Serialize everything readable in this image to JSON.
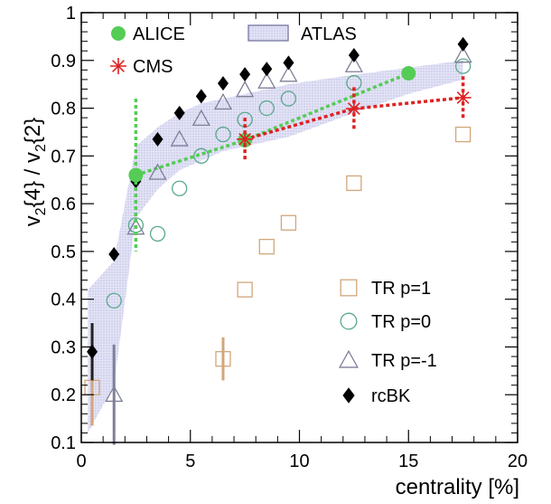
{
  "chart_data": {
    "type": "scatter",
    "xlabel": "centrality [%]",
    "ylabel_main": "v",
    "ylabel_parts": [
      "2",
      "{4} / v",
      "2",
      "{2}"
    ],
    "xlim": [
      0,
      20
    ],
    "ylim": [
      0.1,
      1.0
    ],
    "x_ticks": [
      0,
      5,
      10,
      15,
      20
    ],
    "x_tick_labels": [
      "0",
      "5",
      "10",
      "15",
      "20"
    ],
    "y_ticks": [
      0.1,
      0.2,
      0.3,
      0.4,
      0.5,
      0.6,
      0.7,
      0.8,
      0.9,
      1.0
    ],
    "y_tick_labels": [
      "0.1",
      "0.2",
      "0.3",
      "0.4",
      "0.5",
      "0.6",
      "0.7",
      "0.8",
      "0.9",
      "1"
    ],
    "grid": false,
    "colors": {
      "alice": "#55cc55",
      "cms": "#dd2222",
      "atlas_band": "#c8c8ee",
      "atlas_edge": "#6a6a9a",
      "tr_p1": "#d2a67a",
      "tr_p0": "#5aa88c",
      "tr_pm1": "#7f7f99",
      "rcbk": "#000000"
    },
    "atlas_band": {
      "x": [
        0.3,
        1.5,
        2.5,
        3.5,
        4.5,
        5.5,
        6.5,
        7.5,
        8.5,
        9.5,
        12.5,
        15,
        17.5
      ],
      "upper": [
        0.42,
        0.48,
        0.72,
        0.76,
        0.79,
        0.81,
        0.82,
        0.83,
        0.84,
        0.85,
        0.87,
        0.885,
        0.9
      ],
      "lower": [
        0.12,
        0.22,
        0.57,
        0.63,
        0.67,
        0.69,
        0.71,
        0.72,
        0.73,
        0.74,
        0.79,
        0.83,
        0.86
      ]
    },
    "series": [
      {
        "name": "ALICE",
        "x": [
          2.5,
          7.5,
          15
        ],
        "y": [
          0.66,
          0.733,
          0.873
        ],
        "yerr": [
          0.16,
          0.0,
          0.0
        ]
      },
      {
        "name": "CMS",
        "x": [
          7.5,
          12.5,
          17.5
        ],
        "y": [
          0.735,
          0.799,
          0.822
        ],
        "yerr": [
          0.045,
          0.045,
          0.045
        ]
      },
      {
        "name": "TR p=1",
        "x": [
          0.5,
          6.5,
          7.5,
          8.5,
          9.5,
          12.5,
          17.5
        ],
        "y": [
          0.215,
          0.275,
          0.42,
          0.51,
          0.56,
          0.643,
          0.745
        ],
        "yerr": [
          0.08,
          0.045,
          0.0,
          0.0,
          0.0,
          0.0,
          0.0
        ]
      },
      {
        "name": "TR p=0",
        "x": [
          1.5,
          2.5,
          3.5,
          4.5,
          5.5,
          6.5,
          7.5,
          8.5,
          9.5,
          12.5,
          17.5
        ],
        "y": [
          0.397,
          0.555,
          0.537,
          0.632,
          0.7,
          0.745,
          0.776,
          0.8,
          0.82,
          0.853,
          0.888
        ],
        "yerr": [
          0,
          0,
          0,
          0,
          0,
          0,
          0,
          0,
          0,
          0,
          0
        ]
      },
      {
        "name": "TR p=-1",
        "x": [
          1.5,
          2.5,
          3.5,
          4.5,
          5.5,
          6.5,
          7.5,
          8.5,
          9.5,
          12.5,
          17.5
        ],
        "y": [
          0.2,
          0.55,
          0.665,
          0.735,
          0.778,
          0.812,
          0.838,
          0.856,
          0.87,
          0.89,
          0.91
        ],
        "yerr": [
          0.105,
          0,
          0,
          0,
          0,
          0,
          0,
          0,
          0,
          0,
          0
        ]
      },
      {
        "name": "rcBK",
        "x": [
          0.5,
          1.5,
          2.5,
          3.5,
          4.5,
          5.5,
          6.5,
          7.5,
          8.5,
          9.5,
          12.5,
          17.5
        ],
        "y": [
          0.29,
          0.494,
          0.647,
          0.735,
          0.79,
          0.825,
          0.852,
          0.871,
          0.882,
          0.895,
          0.911,
          0.934
        ],
        "yerr": [
          0.06,
          0,
          0,
          0,
          0,
          0,
          0,
          0,
          0,
          0,
          0,
          0
        ]
      }
    ],
    "legend_top": [
      "ALICE",
      "ATLAS",
      "CMS"
    ],
    "legend_bottom": [
      "TR p=1",
      "TR p=0",
      "TR p=-1",
      "rcBK"
    ]
  }
}
